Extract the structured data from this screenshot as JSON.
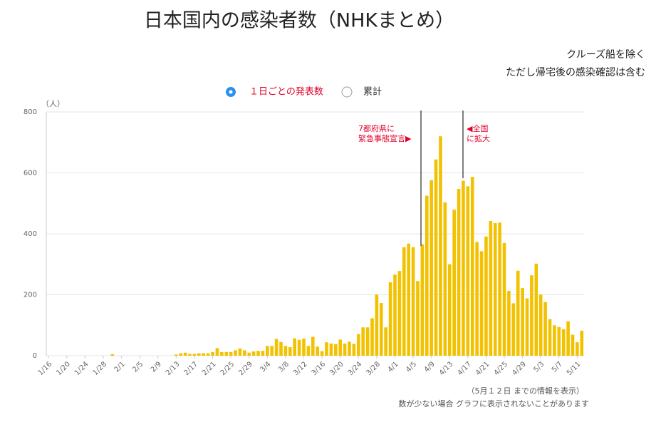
{
  "chart_data": {
    "type": "bar",
    "title": "日本国内の感染者数（NHKまとめ）",
    "notes": [
      "クルーズ船を除く",
      "ただし帰宅後の感染確認は含む"
    ],
    "legend": [
      "１日ごとの発表数",
      "累計"
    ],
    "y_unit": "（人）",
    "annotations": [
      "7都府県に",
      "緊急事態宣言▶",
      "◀全国",
      "に拡大"
    ],
    "footer": [
      "（5月１２日 までの情報を表示）",
      "数が少ない場合 グラフに表示されないことがあります"
    ],
    "color": "#f2c100",
    "grid": true,
    "ylim": [
      0,
      800
    ],
    "yticks": [
      0,
      200,
      400,
      600,
      800
    ],
    "categories": [
      "1/16",
      null,
      null,
      null,
      "1/20",
      null,
      null,
      null,
      "1/24",
      null,
      null,
      null,
      "1/28",
      null,
      null,
      null,
      "2/1",
      null,
      null,
      null,
      "2/5",
      null,
      null,
      null,
      "2/9",
      null,
      null,
      null,
      "2/13",
      null,
      null,
      null,
      "2/17",
      null,
      null,
      null,
      "2/21",
      null,
      null,
      null,
      "2/25",
      null,
      null,
      null,
      "2/29",
      null,
      null,
      null,
      "3/4",
      null,
      null,
      null,
      "3/8",
      null,
      null,
      null,
      "3/12",
      null,
      null,
      null,
      "3/16",
      null,
      null,
      null,
      "3/20",
      null,
      null,
      null,
      "3/24",
      null,
      null,
      null,
      "3/28",
      null,
      null,
      null,
      "4/1",
      null,
      null,
      null,
      "4/5",
      null,
      null,
      null,
      "4/9",
      null,
      null,
      null,
      "4/13",
      null,
      null,
      null,
      "4/17",
      null,
      null,
      null,
      "4/21",
      null,
      null,
      null,
      "4/25",
      null,
      null,
      null,
      "4/29",
      null,
      null,
      null,
      "5/3",
      null,
      null,
      null,
      "5/7",
      null,
      null,
      null,
      "5/11",
      null
    ],
    "values": [
      0,
      0,
      0,
      0,
      0,
      0,
      0,
      0,
      0,
      0,
      0,
      0,
      0,
      0,
      5,
      0,
      0,
      0,
      0,
      0,
      0,
      0,
      0,
      0,
      0,
      0,
      0,
      0,
      4,
      8,
      10,
      6,
      6,
      8,
      8,
      8,
      12,
      25,
      12,
      12,
      12,
      18,
      24,
      18,
      10,
      14,
      16,
      16,
      32,
      32,
      55,
      45,
      32,
      28,
      57,
      52,
      56,
      32,
      62,
      30,
      15,
      44,
      40,
      38,
      53,
      40,
      46,
      39,
      71,
      93,
      93,
      123,
      201,
      173,
      93,
      241,
      266,
      278,
      356,
      368,
      356,
      245,
      365,
      525,
      576,
      644,
      720,
      503,
      300,
      479,
      547,
      574,
      556,
      587,
      373,
      343,
      391,
      442,
      435,
      437,
      370,
      213,
      172,
      279,
      222,
      188,
      264,
      302,
      201,
      176,
      120,
      100,
      94,
      87,
      113,
      69,
      44,
      82
    ]
  }
}
